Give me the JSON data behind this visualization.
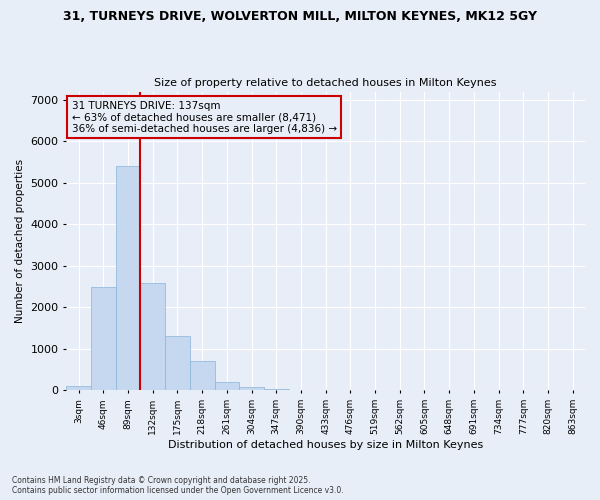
{
  "title_line1": "31, TURNEYS DRIVE, WOLVERTON MILL, MILTON KEYNES, MK12 5GY",
  "title_line2": "Size of property relative to detached houses in Milton Keynes",
  "xlabel": "Distribution of detached houses by size in Milton Keynes",
  "ylabel": "Number of detached properties",
  "categories": [
    "3sqm",
    "46sqm",
    "89sqm",
    "132sqm",
    "175sqm",
    "218sqm",
    "261sqm",
    "304sqm",
    "347sqm",
    "390sqm",
    "433sqm",
    "476sqm",
    "519sqm",
    "562sqm",
    "605sqm",
    "648sqm",
    "691sqm",
    "734sqm",
    "777sqm",
    "820sqm",
    "863sqm"
  ],
  "values": [
    100,
    2500,
    5400,
    2600,
    1300,
    700,
    200,
    80,
    40,
    10,
    5,
    2,
    1,
    0,
    0,
    0,
    0,
    0,
    0,
    0,
    0
  ],
  "bar_color": "#c5d8f0",
  "bar_edge_color": "#8ab4d8",
  "vline_x_index": 3,
  "vline_color": "#cc0000",
  "annotation_title": "31 TURNEYS DRIVE: 137sqm",
  "annotation_line2": "← 63% of detached houses are smaller (8,471)",
  "annotation_line3": "36% of semi-detached houses are larger (4,836) →",
  "annotation_box_edgecolor": "#cc0000",
  "ylim": [
    0,
    7200
  ],
  "yticks": [
    0,
    1000,
    2000,
    3000,
    4000,
    5000,
    6000,
    7000
  ],
  "footnote_line1": "Contains HM Land Registry data © Crown copyright and database right 2025.",
  "footnote_line2": "Contains public sector information licensed under the Open Government Licence v3.0.",
  "bg_color": "#e8eef8",
  "grid_color": "#ffffff"
}
